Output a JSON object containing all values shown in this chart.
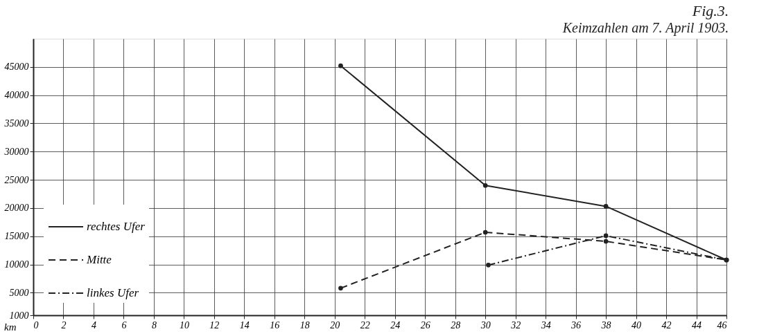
{
  "chart_data": {
    "type": "line",
    "title": "Fig.3.",
    "subtitle": "Keimzahlen am 7. April 1903.",
    "xlabel": "km",
    "xlim": [
      0,
      46
    ],
    "xticks": [
      0,
      2,
      4,
      6,
      8,
      10,
      12,
      14,
      16,
      18,
      20,
      22,
      24,
      26,
      28,
      30,
      32,
      34,
      36,
      38,
      40,
      42,
      44,
      46
    ],
    "ylim": [
      1000,
      50000
    ],
    "yticks": [
      1000,
      5000,
      10000,
      15000,
      20000,
      25000,
      30000,
      35000,
      40000,
      45000
    ],
    "grid": true,
    "legend": "left",
    "marker": "circle",
    "series": [
      {
        "name": "rechtes Ufer",
        "color": "#222222",
        "line_style": "solid",
        "x": [
          20.4,
          30,
          38,
          46
        ],
        "values": [
          45200,
          24000,
          20300,
          10800
        ]
      },
      {
        "name": "Mitte",
        "color": "#222222",
        "line_style": "dashed",
        "x": [
          20.4,
          30,
          38,
          46
        ],
        "values": [
          5800,
          15700,
          14100,
          10800
        ]
      },
      {
        "name": "linkes Ufer",
        "color": "#222222",
        "line_style": "dashdot",
        "x": [
          30.2,
          38,
          46
        ],
        "values": [
          9900,
          15100,
          10800
        ]
      }
    ]
  }
}
